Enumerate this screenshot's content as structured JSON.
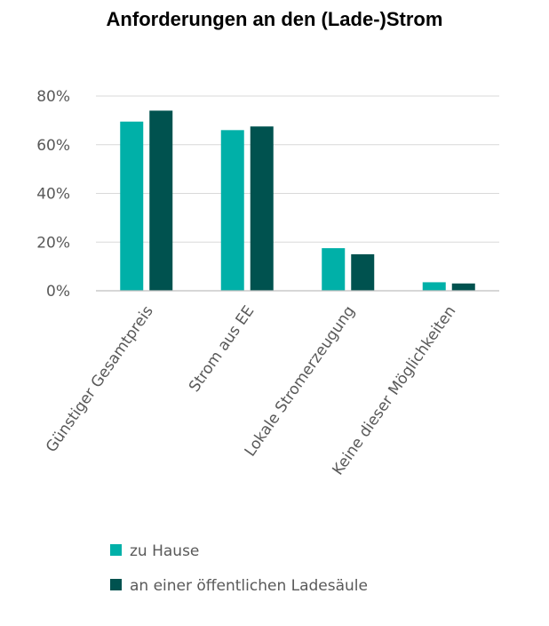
{
  "chart_data": {
    "type": "bar",
    "title": "Anforderungen an den (Lade-)Strom",
    "categories": [
      "Günstiger Gesamtpreis",
      "Strom aus EE",
      "Lokale Stromerzeugung",
      "Keine dieser Möglichkeiten"
    ],
    "series": [
      {
        "name": "zu Hause",
        "values": [
          69.5,
          66.0,
          17.5,
          3.5
        ],
        "color": "#00b0a8"
      },
      {
        "name": "an einer öffentlichen Ladesäule",
        "values": [
          74.0,
          67.5,
          15.0,
          3.0
        ],
        "color": "#00524f"
      }
    ],
    "ylim": [
      0,
      80
    ],
    "yticks": [
      "0%",
      "20%",
      "40%",
      "60%",
      "80%"
    ],
    "ytick_values": [
      0,
      20,
      40,
      60,
      80
    ],
    "grid": true,
    "legend_position": "bottom"
  }
}
